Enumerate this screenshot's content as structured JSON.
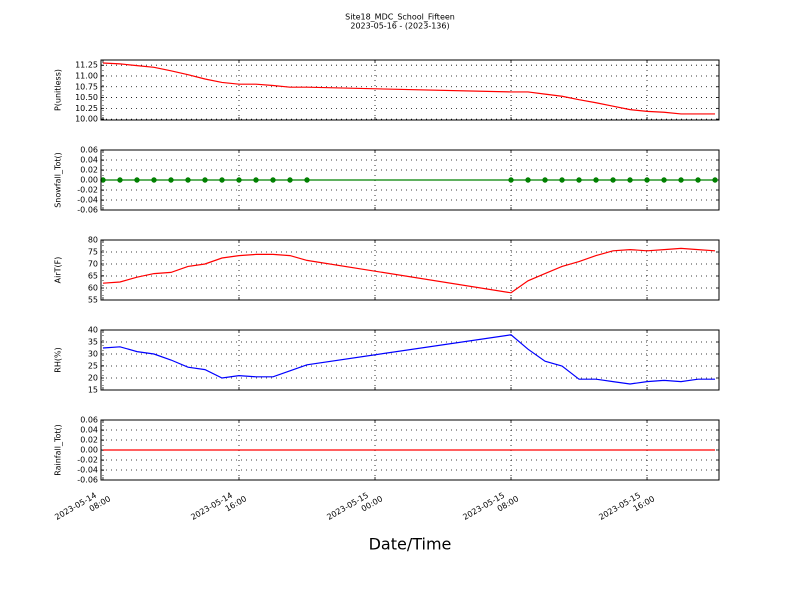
{
  "chart_data": {
    "type": "line",
    "title": "Site18_MDC_School_Fifteen",
    "subtitle": "2023-05-16 - (2023-136)",
    "xlabel": "Date/Time",
    "grid": true,
    "x": [
      "2023-05-14 08:00",
      "2023-05-14 09:00",
      "2023-05-14 10:00",
      "2023-05-14 11:00",
      "2023-05-14 12:00",
      "2023-05-14 13:00",
      "2023-05-14 14:00",
      "2023-05-14 15:00",
      "2023-05-14 16:00",
      "2023-05-14 17:00",
      "2023-05-14 18:00",
      "2023-05-14 19:00",
      "2023-05-14 20:00",
      "2023-05-15 08:00",
      "2023-05-15 09:00",
      "2023-05-15 10:00",
      "2023-05-15 11:00",
      "2023-05-15 12:00",
      "2023-05-15 13:00",
      "2023-05-15 14:00",
      "2023-05-15 15:00",
      "2023-05-15 16:00",
      "2023-05-15 17:00",
      "2023-05-15 18:00",
      "2023-05-15 19:00",
      "2023-05-15 20:00"
    ],
    "xlim": [
      "2023-05-14 07:53",
      "2023-05-15 20:14"
    ],
    "xticks": [
      "2023-05-14 08:00",
      "2023-05-14 16:00",
      "2023-05-15 00:00",
      "2023-05-15 08:00",
      "2023-05-15 16:00"
    ],
    "panels": [
      {
        "ylabel": "P(unitless)",
        "ylim": [
          9.98,
          11.37
        ],
        "yticks": [
          {
            "value": 10,
            "label": "10.00"
          },
          10.25,
          {
            "value": 10.5,
            "label": "10.50"
          },
          10.75,
          {
            "value": 11,
            "label": "11.00"
          },
          11.25
        ],
        "series": [
          {
            "color": "#ff0000",
            "marker": false,
            "values": [
              11.3,
              11.28,
              11.24,
              11.2,
              11.12,
              11.03,
              10.93,
              10.85,
              10.81,
              10.81,
              10.78,
              10.74,
              10.74,
              10.63,
              10.63,
              10.58,
              10.53,
              10.45,
              10.38,
              10.3,
              10.22,
              10.18,
              10.16,
              10.12,
              10.12,
              10.12
            ]
          }
        ]
      },
      {
        "ylabel": "Snowfall_Tot()",
        "ylim": [
          -0.06,
          0.06
        ],
        "yticks": [
          -0.06,
          -0.04,
          -0.02,
          {
            "value": 0,
            "label": "0.00"
          },
          0.02,
          0.04,
          0.06
        ],
        "series": [
          {
            "color": "#008000",
            "marker": true,
            "values": [
              0,
              0,
              0,
              0,
              0,
              0,
              0,
              0,
              0,
              0,
              0,
              0,
              0,
              0,
              0,
              0,
              0,
              0,
              0,
              0,
              0,
              0,
              0,
              0,
              0,
              0
            ]
          }
        ]
      },
      {
        "ylabel": "AirT(F)",
        "ylim": [
          55,
          80
        ],
        "yticks": [
          55,
          60,
          65,
          70,
          75,
          80
        ],
        "series": [
          {
            "color": "#ff0000",
            "marker": false,
            "values": [
              62,
              62.5,
              64.5,
              66,
              66.5,
              69,
              70,
              72.5,
              73.5,
              74,
              74,
              73.5,
              71.5,
              58,
              63,
              66,
              69,
              71,
              73.5,
              75.5,
              76,
              75.5,
              76,
              76.5,
              76,
              75.5
            ]
          }
        ]
      },
      {
        "ylabel": "RH(%)",
        "ylim": [
          15,
          40
        ],
        "yticks": [
          15,
          20,
          25,
          30,
          35,
          40
        ],
        "series": [
          {
            "color": "#0000ff",
            "marker": false,
            "values": [
              32.5,
              33,
              31,
              30,
              27.5,
              24.5,
              23.5,
              20,
              21,
              20.5,
              20.5,
              23,
              25.5,
              38,
              32,
              27,
              25,
              19.5,
              19.5,
              18.5,
              17.5,
              18.5,
              19,
              18.5,
              19.5,
              19.5
            ]
          }
        ]
      },
      {
        "ylabel": "Rainfall_Tot()",
        "ylim": [
          -0.06,
          0.06
        ],
        "yticks": [
          -0.06,
          -0.04,
          -0.02,
          {
            "value": 0,
            "label": "0.00"
          },
          0.02,
          0.04,
          0.06
        ],
        "series": [
          {
            "color": "#ff0000",
            "marker": false,
            "values": [
              0,
              0,
              0,
              0,
              0,
              0,
              0,
              0,
              0,
              0,
              0,
              0,
              0,
              0,
              0,
              0,
              0,
              0,
              0,
              0,
              0,
              0,
              0,
              0,
              0,
              0
            ]
          }
        ]
      }
    ]
  }
}
